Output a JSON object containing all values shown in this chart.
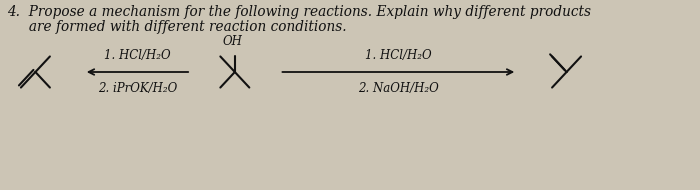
{
  "background_color": "#ccc5b5",
  "text_color": "#111111",
  "title_line1": "4.  Propose a mechanism for the following reactions. Explain why different products",
  "title_line2": "     are formed with different reaction conditions.",
  "reaction1_label1": "1. HCl/H₂O",
  "reaction1_label2": "2. iPrOK/H₂O",
  "reaction2_label1": "1. HCl/H₂O",
  "reaction2_label2": "2. NaOH/H₂O",
  "oh_label": "OH",
  "font_size_title": 9.8,
  "font_size_labels": 8.5,
  "font_size_oh": 8.5,
  "lw": 1.5
}
